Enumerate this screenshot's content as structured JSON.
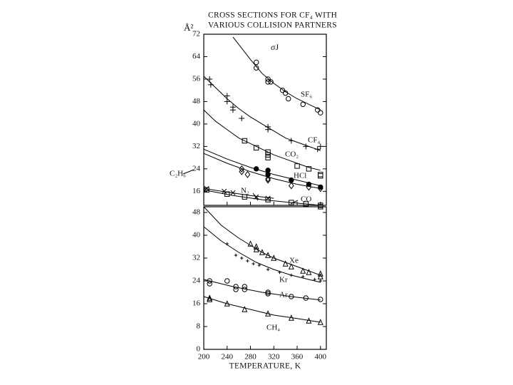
{
  "chart_data": [
    {
      "type": "scatter",
      "title": [
        "CROSS SECTIONS FOR CF₄ WITH",
        "VARIOUS COLLISION PARTNERS"
      ],
      "ylabel": "Å²",
      "annotation": "σJ",
      "xlim": [
        200,
        410
      ],
      "ylim": [
        11,
        72
      ],
      "yticks": [
        16,
        24,
        32,
        40,
        48,
        56,
        64,
        72
      ],
      "xticks": [
        200,
        240,
        280,
        320,
        360,
        400
      ],
      "series": [
        {
          "name": "SF₆",
          "color": "#000000",
          "marker": "circle",
          "x": [
            290,
            290,
            310,
            310,
            315,
            335,
            340,
            345,
            370,
            395,
            400
          ],
          "values": [
            62,
            60,
            56,
            55,
            55,
            52,
            51,
            49,
            47,
            45,
            44
          ],
          "curve_x": [
            250,
            280,
            300,
            320,
            340,
            360,
            380,
            400
          ],
          "curve_values": [
            71,
            63,
            58,
            54.5,
            51.5,
            49,
            47,
            45
          ]
        },
        {
          "name": "CF₄",
          "color": "#000000",
          "marker": "plus",
          "x": [
            210,
            212,
            240,
            240,
            250,
            250,
            265,
            310,
            310,
            350,
            375,
            395,
            400
          ],
          "values": [
            56,
            54,
            50,
            48,
            46,
            45,
            42,
            39,
            38,
            34,
            32,
            31,
            32
          ],
          "curve_x": [
            200,
            220,
            240,
            260,
            280,
            300,
            320,
            340,
            360,
            380,
            400
          ],
          "curve_values": [
            57,
            53,
            49,
            45.5,
            42.5,
            40,
            37.5,
            35,
            33.5,
            32,
            30.5
          ]
        },
        {
          "name": "CO₂",
          "color": "#000000",
          "marker": "square",
          "x": [
            270,
            290,
            310,
            310,
            310,
            360,
            380,
            400,
            400
          ],
          "values": [
            34,
            31.5,
            30,
            29,
            28,
            25,
            24,
            22,
            21.5
          ],
          "curve_x": [
            200,
            220,
            240,
            260,
            280,
            300,
            320,
            340,
            360,
            380,
            400
          ],
          "curve_values": [
            45,
            41,
            38,
            35,
            33,
            31,
            29,
            27.5,
            26,
            24.5,
            23.5
          ]
        },
        {
          "name": "HCl",
          "color": "#000000",
          "marker": "dot",
          "x": [
            290,
            310,
            310,
            350,
            380,
            400
          ],
          "values": [
            24,
            23.5,
            22,
            20,
            18.5,
            17.5
          ],
          "curve_x": [
            200,
            240,
            280,
            320,
            360,
            400
          ],
          "curve_values": [
            31,
            27.5,
            24.5,
            22,
            20,
            18
          ]
        },
        {
          "name": "C₂H₆",
          "color": "#000000",
          "marker": "diamond",
          "x": [
            265,
            265,
            275,
            310,
            310,
            350,
            380,
            400
          ],
          "values": [
            24,
            23,
            22,
            20.5,
            20,
            18,
            17.5,
            17
          ],
          "curve_x": [
            200,
            240,
            280,
            320,
            360,
            400
          ],
          "curve_values": [
            29.5,
            26,
            23,
            20.5,
            18.5,
            17
          ]
        },
        {
          "name": "N₂",
          "color": "#000000",
          "marker": "cross",
          "x": [
            205,
            235,
            250,
            290,
            310
          ],
          "values": [
            17,
            16,
            15.5,
            14,
            13.5
          ],
          "curve_x": [
            200,
            240,
            280,
            320
          ],
          "curve_values": [
            17,
            15.7,
            14.5,
            13.5
          ]
        },
        {
          "name": "CO",
          "color": "#000000",
          "marker": "square",
          "x": [
            205,
            240,
            270,
            310,
            350,
            375,
            400,
            400
          ],
          "values": [
            16.5,
            15,
            14,
            13,
            12,
            11.5,
            11,
            10.5
          ],
          "curve_x": [
            200,
            250,
            300,
            350,
            400
          ],
          "curve_values": [
            16.5,
            14.5,
            13,
            12,
            11
          ]
        }
      ]
    },
    {
      "type": "scatter",
      "xlabel": "TEMPERATURE, K",
      "xlim": [
        200,
        410
      ],
      "ylim": [
        0,
        50
      ],
      "yticks": [
        0,
        8,
        16,
        24,
        32,
        40,
        48
      ],
      "xticks": [
        200,
        240,
        280,
        320,
        360,
        400
      ],
      "series": [
        {
          "name": "Xe",
          "color": "#000000",
          "marker": "triangle",
          "x": [
            280,
            290,
            290,
            300,
            310,
            320,
            340,
            350,
            370,
            380,
            400,
            400
          ],
          "values": [
            37,
            36,
            35,
            34,
            33,
            32,
            30,
            29,
            27.5,
            27,
            26.5,
            25.5
          ],
          "curve_x": [
            200,
            230,
            260,
            280,
            300,
            320,
            340,
            360,
            380,
            400
          ],
          "curve_values": [
            50,
            43.5,
            39,
            36.5,
            34,
            32,
            30.5,
            29,
            27.5,
            26
          ]
        },
        {
          "name": "Kr",
          "color": "#000000",
          "marker": "smallplus",
          "x": [
            240,
            255,
            265,
            275,
            285,
            295,
            310,
            330,
            350,
            370,
            390,
            400
          ],
          "values": [
            37,
            33,
            32,
            31,
            30,
            29.5,
            28,
            27,
            26,
            25.5,
            24.5,
            24
          ],
          "curve_x": [
            200,
            230,
            260,
            290,
            320,
            350,
            380,
            400
          ],
          "curve_values": [
            43,
            38,
            34,
            30.5,
            28,
            26,
            24.5,
            23.5
          ]
        },
        {
          "name": "Ar",
          "color": "#000000",
          "marker": "circle",
          "x": [
            210,
            210,
            240,
            255,
            255,
            270,
            270,
            310,
            310,
            350,
            375,
            400
          ],
          "values": [
            24,
            23,
            24,
            22,
            21,
            22,
            21,
            20,
            19.5,
            18.5,
            18,
            17.5
          ],
          "curve_x": [
            200,
            250,
            300,
            350,
            400
          ],
          "curve_values": [
            24.5,
            22,
            20,
            18.5,
            17.3
          ]
        },
        {
          "name": "CH₄",
          "color": "#000000",
          "marker": "triangle",
          "x": [
            210,
            210,
            240,
            270,
            310,
            350,
            380,
            400
          ],
          "values": [
            18,
            17.5,
            16,
            14,
            12.5,
            11,
            10,
            9.5
          ],
          "curve_x": [
            200,
            240,
            280,
            320,
            360,
            400
          ],
          "curve_values": [
            18.5,
            16,
            14,
            12,
            10.8,
            9.5
          ]
        }
      ]
    }
  ]
}
